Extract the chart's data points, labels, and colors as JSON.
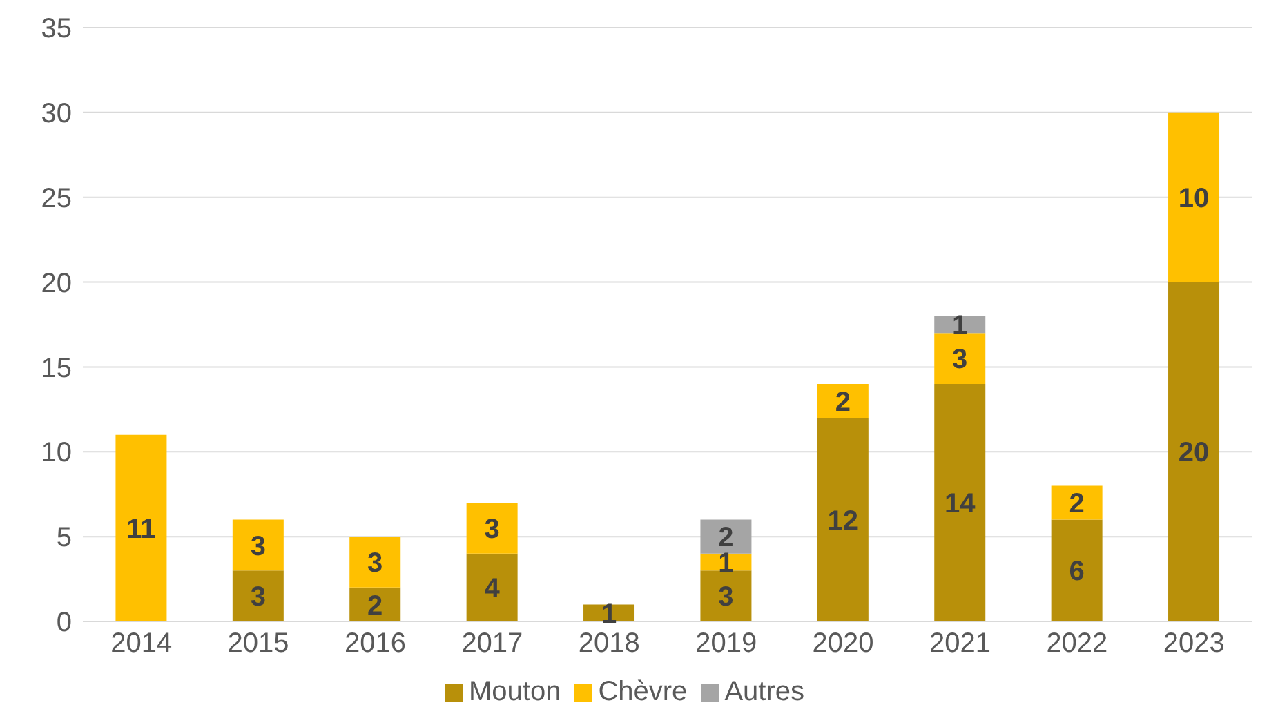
{
  "chart_data": {
    "type": "bar",
    "stacked": true,
    "categories": [
      "2014",
      "2015",
      "2016",
      "2017",
      "2018",
      "2019",
      "2020",
      "2021",
      "2022",
      "2023"
    ],
    "series": [
      {
        "name": "Mouton",
        "color": "#b8900a",
        "values": [
          null,
          3,
          2,
          4,
          1,
          3,
          12,
          14,
          6,
          20
        ]
      },
      {
        "name": "Chèvre",
        "color": "#ffc000",
        "values": [
          11,
          3,
          3,
          3,
          null,
          1,
          2,
          3,
          2,
          10
        ]
      },
      {
        "name": "Autres",
        "color": "#a5a5a5",
        "values": [
          null,
          null,
          null,
          null,
          null,
          2,
          null,
          1,
          null,
          null
        ]
      }
    ],
    "ylim": [
      0,
      35
    ],
    "yticks": [
      0,
      5,
      10,
      15,
      20,
      25,
      30,
      35
    ],
    "grid": "y",
    "legend": "bottom",
    "data_labels": true
  }
}
